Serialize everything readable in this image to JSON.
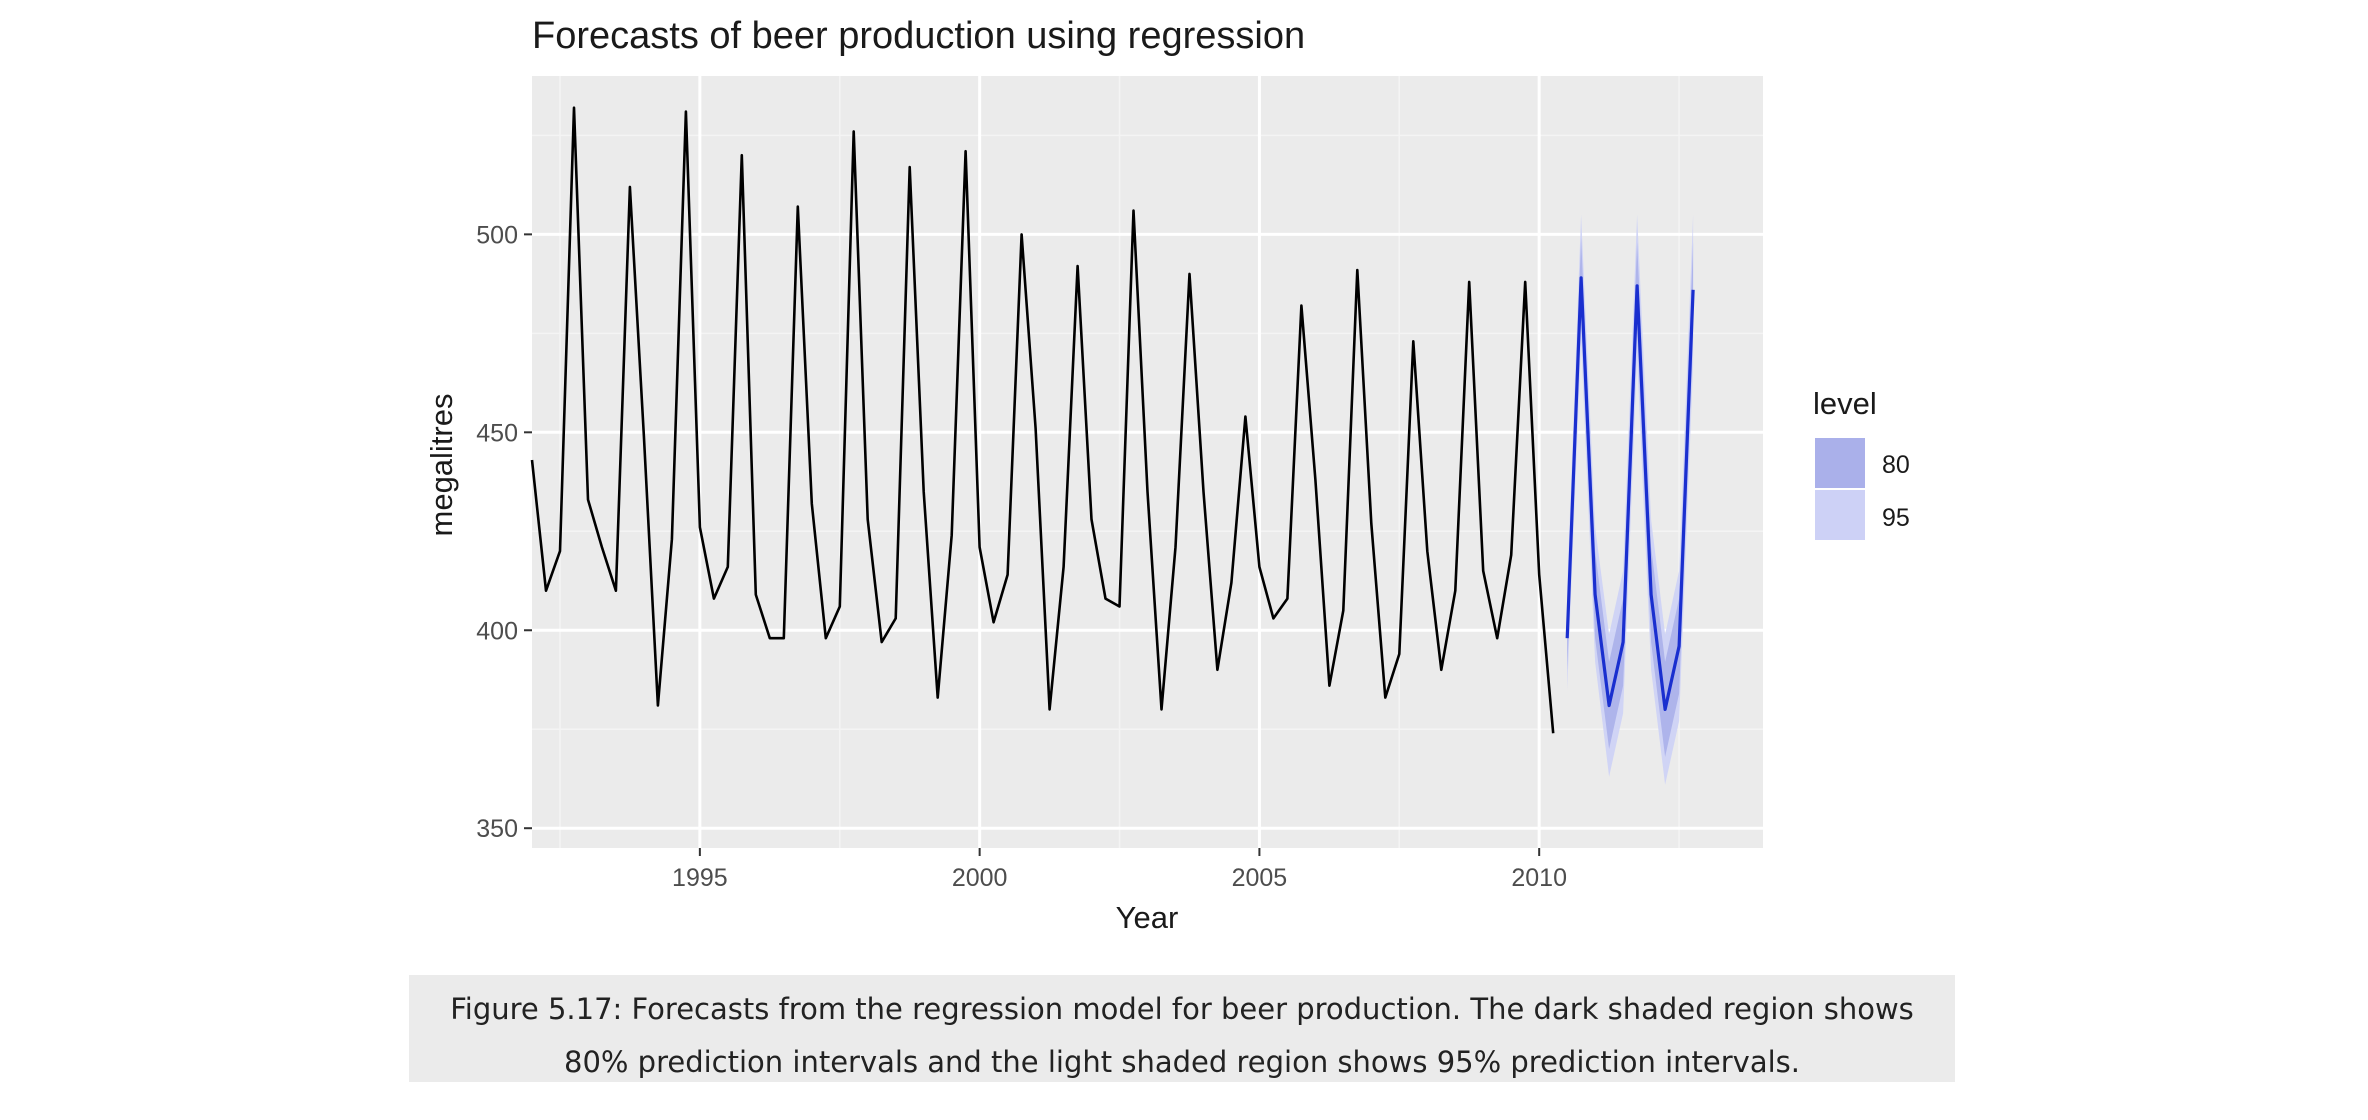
{
  "chart_data": {
    "type": "line",
    "title": "Forecasts of beer production using regression",
    "xlabel": "Year",
    "ylabel": "megalitres",
    "xlim": [
      1992,
      2014
    ],
    "ylim": [
      345,
      540
    ],
    "x_ticks": [
      1995,
      2000,
      2005,
      2010
    ],
    "y_ticks": [
      350,
      400,
      450,
      500
    ],
    "grid": true,
    "legend": {
      "title": "level",
      "position": "right",
      "entries": [
        "80",
        "95"
      ]
    },
    "series": [
      {
        "color": "#000000",
        "x": [
          1992.0,
          1992.25,
          1992.5,
          1992.75,
          1993.0,
          1993.25,
          1993.5,
          1993.75,
          1994.0,
          1994.25,
          1994.5,
          1994.75,
          1995.0,
          1995.25,
          1995.5,
          1995.75,
          1996.0,
          1996.25,
          1996.5,
          1996.75,
          1997.0,
          1997.25,
          1997.5,
          1997.75,
          1998.0,
          1998.25,
          1998.5,
          1998.75,
          1999.0,
          1999.25,
          1999.5,
          1999.75,
          2000.0,
          2000.25,
          2000.5,
          2000.75,
          2001.0,
          2001.25,
          2001.5,
          2001.75,
          2002.0,
          2002.25,
          2002.5,
          2002.75,
          2003.0,
          2003.25,
          2003.5,
          2003.75,
          2004.0,
          2004.25,
          2004.5,
          2004.75,
          2005.0,
          2005.25,
          2005.5,
          2005.75,
          2006.0,
          2006.25,
          2006.5,
          2006.75,
          2007.0,
          2007.25,
          2007.5,
          2007.75,
          2008.0,
          2008.25,
          2008.5,
          2008.75,
          2009.0,
          2009.25,
          2009.5,
          2009.75,
          2010.0,
          2010.25
        ],
        "values": [
          443,
          410,
          420,
          532,
          433,
          421,
          410,
          512,
          449,
          381,
          423,
          531,
          426,
          408,
          416,
          520,
          409,
          398,
          398,
          507,
          432,
          398,
          406,
          526,
          428,
          397,
          403,
          517,
          435,
          383,
          424,
          521,
          421,
          402,
          414,
          500,
          451,
          380,
          416,
          492,
          428,
          408,
          406,
          506,
          435,
          380,
          421,
          490,
          435,
          390,
          412,
          454,
          416,
          403,
          408,
          482,
          438,
          386,
          405,
          491,
          427,
          383,
          394,
          473,
          420,
          390,
          410,
          488,
          415,
          398,
          419,
          488,
          414,
          374
        ]
      },
      {
        "color": "#1a2fcf",
        "x": [
          2010.5,
          2010.75,
          2011.0,
          2011.25,
          2011.5,
          2011.75,
          2012.0,
          2012.25,
          2012.5,
          2012.75
        ],
        "values": [
          398,
          489,
          409,
          381,
          397,
          487,
          409,
          380,
          396,
          486
        ],
        "pi80": [
          [
            390,
            406
          ],
          [
            479,
            499
          ],
          [
            398,
            420
          ],
          [
            370,
            392
          ],
          [
            386,
            408
          ],
          [
            476,
            498
          ],
          [
            397,
            421
          ],
          [
            368,
            392
          ],
          [
            384,
            408
          ],
          [
            474,
            498
          ]
        ],
        "pi95": [
          [
            385,
            411
          ],
          [
            473,
            505
          ],
          [
            392,
            426
          ],
          [
            363,
            399
          ],
          [
            379,
            415
          ],
          [
            469,
            505
          ],
          [
            390,
            428
          ],
          [
            361,
            399
          ],
          [
            377,
            415
          ],
          [
            467,
            505
          ]
        ]
      }
    ],
    "legend_colors": {
      "80": "#aab0ea",
      "95": "#cdd1f6"
    }
  },
  "caption": {
    "line1": "Figure 5.17: Forecasts from the regression model for beer production. The dark shaded region shows",
    "line2": "80% prediction intervals and the light shaded region shows 95% prediction intervals."
  }
}
